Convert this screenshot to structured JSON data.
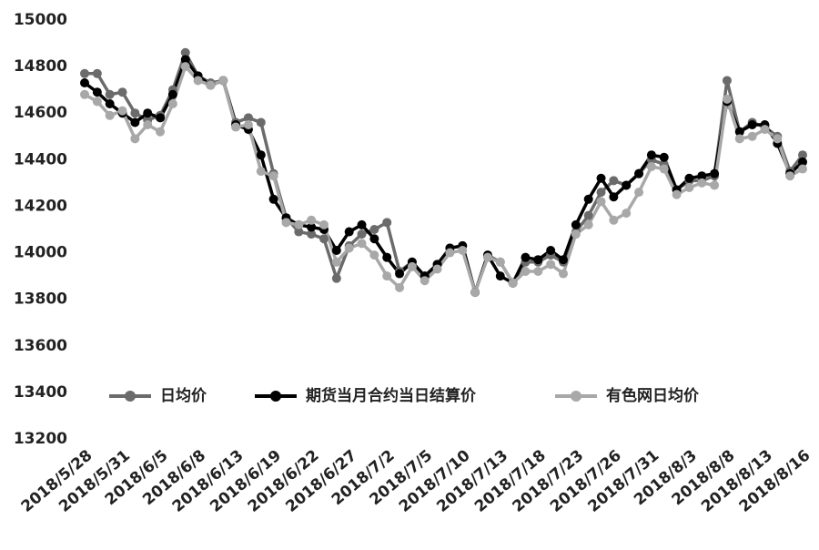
{
  "chart_data": {
    "type": "line",
    "categories": [
      "2018/5/28",
      null,
      null,
      "2018/5/31",
      null,
      null,
      "2018/6/5",
      null,
      null,
      "2018/6/8",
      null,
      null,
      "2018/6/13",
      null,
      null,
      "2018/6/19",
      null,
      null,
      "2018/6/22",
      null,
      null,
      "2018/6/27",
      null,
      null,
      "2018/7/2",
      null,
      null,
      "2018/7/5",
      null,
      null,
      "2018/7/10",
      null,
      null,
      "2018/7/13",
      null,
      null,
      "2018/7/18",
      null,
      null,
      "2018/7/23",
      null,
      null,
      "2018/7/26",
      null,
      null,
      "2018/7/31",
      null,
      null,
      "2018/8/3",
      null,
      null,
      "2018/8/8",
      null,
      null,
      "2018/8/13",
      null,
      null,
      "2018/8/16"
    ],
    "series": [
      {
        "name": "日均价",
        "color": "#6b6b6b",
        "values": [
          14770,
          14770,
          14680,
          14690,
          14600,
          14570,
          14590,
          14700,
          14860,
          14760,
          14730,
          14740,
          14560,
          14580,
          14560,
          14340,
          14150,
          14090,
          14080,
          14060,
          13890,
          14030,
          14080,
          14100,
          14130,
          13920,
          13960,
          13900,
          13950,
          14020,
          14030,
          13830,
          13990,
          13960,
          13870,
          13960,
          13960,
          13990,
          13960,
          14090,
          14160,
          14260,
          14310,
          14290,
          14340,
          14400,
          14380,
          14270,
          14310,
          14310,
          14330,
          14740,
          14520,
          14560,
          14540,
          14500,
          14350,
          14420
        ]
      },
      {
        "name": "期货当月合约当日结算价",
        "color": "#000000",
        "values": [
          14730,
          14690,
          14640,
          14600,
          14560,
          14600,
          14580,
          14680,
          14830,
          14760,
          14720,
          14740,
          14550,
          14530,
          14420,
          14230,
          14150,
          14120,
          14110,
          14100,
          14010,
          14090,
          14120,
          14060,
          13980,
          13910,
          13960,
          13900,
          13950,
          14020,
          14030,
          13830,
          13990,
          13900,
          13870,
          13980,
          13970,
          14010,
          13970,
          14120,
          14230,
          14320,
          14240,
          14290,
          14340,
          14420,
          14410,
          14270,
          14320,
          14330,
          14340,
          14650,
          14520,
          14550,
          14550,
          14470,
          14340,
          14390
        ]
      },
      {
        "name": "有色网日均价",
        "color": "#a8a8a8",
        "values": [
          14680,
          14650,
          14590,
          14610,
          14490,
          14550,
          14520,
          14640,
          14800,
          14740,
          14720,
          14740,
          14540,
          14550,
          14350,
          14330,
          14130,
          14120,
          14140,
          14120,
          13960,
          14020,
          14040,
          13990,
          13900,
          13850,
          13940,
          13880,
          13930,
          14000,
          14010,
          13830,
          13980,
          13960,
          13870,
          13920,
          13920,
          13950,
          13910,
          14080,
          14120,
          14220,
          14140,
          14170,
          14260,
          14370,
          14360,
          14250,
          14280,
          14300,
          14290,
          14660,
          14490,
          14500,
          14530,
          14490,
          14330,
          14360
        ]
      }
    ],
    "ylim": [
      13200,
      15000
    ],
    "yticks": [
      13200,
      13400,
      13600,
      13800,
      14000,
      14200,
      14400,
      14600,
      14800,
      15000
    ],
    "grid": false,
    "legend": "inside-bottom"
  }
}
